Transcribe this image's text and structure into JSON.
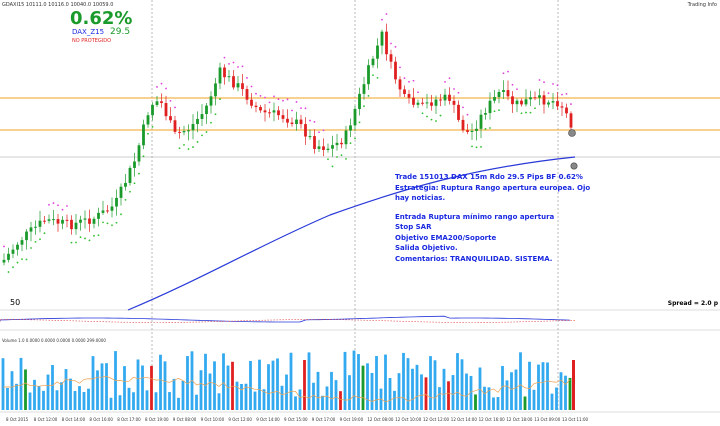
{
  "header": {
    "symbol_info": "GDAXI15  10111.0 10116.0 10040.0 10059.0",
    "percent": "0.62%",
    "symbol": "DAX_Z15",
    "value": "29.5",
    "protection": "NO PROTEGIDO",
    "top_right": "Trading Info"
  },
  "price_labels": {
    "spread": "Spread = 2.0 p",
    "low_value": "50"
  },
  "indicator": {
    "label": "Volume 1.0 0.0000 0.0000 0.0000 0.0000 299.0000"
  },
  "note": {
    "line1": "Trade 151013 DAX 15m Rdo 29.5 Pips BF 0.62%",
    "line2": "Estrategia: Ruptura Rango apertura europea. Ojo hay noticias.",
    "line3": "Entrada Ruptura mínimo rango apertura",
    "line4": "Stop SAR",
    "line5": "Objetivo EMA200/Soporte",
    "line6": "Salida Objetivo.",
    "line7": "Comentarios: TRANQUILIDAD. SISTEMA."
  },
  "time_axis": [
    "8 Oct 2015",
    "8 Oct 12:00",
    "8 Oct 14:00",
    "8 Oct 16:00",
    "8 Oct 17:00",
    "8 Oct 19:00",
    "9 Oct 08:00",
    "9 Oct 10:00",
    "9 Oct 12:00",
    "9 Oct 14:00",
    "9 Oct 15:00",
    "9 Oct 17:00",
    "9 Oct 19:00",
    "12 Oct 08:00",
    "12 Oct 10:00",
    "12 Oct 12:00",
    "12 Oct 14:00",
    "12 Oct 16:00",
    "12 Oct 18:00",
    "13 Oct 09:00",
    "13 Oct 11:00"
  ],
  "colors": {
    "bull": "#1a9a2a",
    "bear": "#e02020",
    "sar_bull": "#2fc02f",
    "sar_bear": "#e040e0",
    "ema": "#2a3ad8",
    "level": "#f0a020",
    "volume": "#33aaf0",
    "vol_ma": "#f0a050"
  }
}
